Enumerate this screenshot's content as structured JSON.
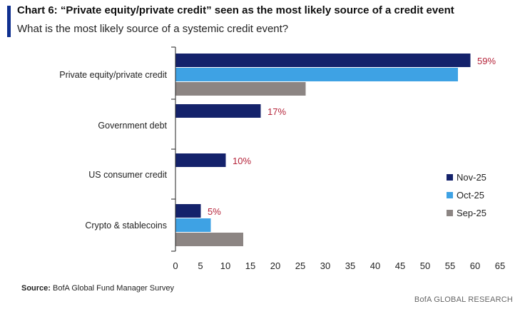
{
  "header": {
    "title": "Chart 6: “Private equity/private credit” seen as the most likely source of a credit event",
    "subtitle": "What is the most likely source of a systemic credit event?"
  },
  "footer": {
    "source_label": "Source:",
    "source_text": "BofA Global Fund Manager Survey",
    "brand": "BofA GLOBAL RESEARCH"
  },
  "colors": {
    "nov": "#14226b",
    "oct": "#3ea2e4",
    "sep": "#8c8583",
    "label": "#b5243a",
    "accent": "#0f2f8f"
  },
  "chart_data": {
    "type": "bar",
    "orientation": "horizontal",
    "categories": [
      "Private equity/private credit",
      "Government debt",
      "US consumer credit",
      "Crypto & stablecoins"
    ],
    "series": [
      {
        "name": "Nov-25",
        "values": [
          59,
          17,
          10,
          5
        ]
      },
      {
        "name": "Oct-25",
        "values": [
          56.5,
          null,
          null,
          7
        ]
      },
      {
        "name": "Sep-25",
        "values": [
          26,
          null,
          null,
          13.5
        ]
      }
    ],
    "data_labels": [
      "59%",
      "17%",
      "10%",
      "5%"
    ],
    "xlim": [
      0,
      65
    ],
    "xticks": [
      0,
      5,
      10,
      15,
      20,
      25,
      30,
      35,
      40,
      45,
      50,
      55,
      60,
      65
    ],
    "legend_position": "right"
  }
}
